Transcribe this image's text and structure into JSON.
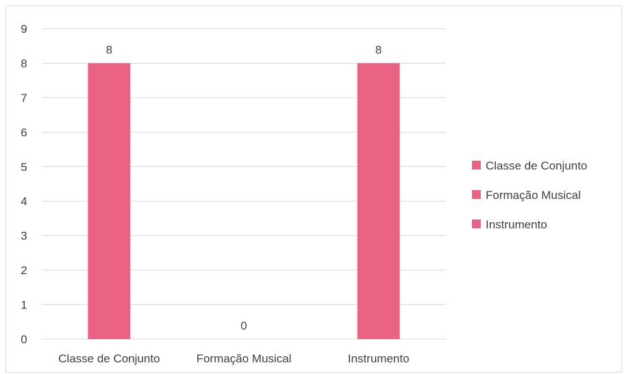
{
  "chart_data": {
    "type": "bar",
    "categories": [
      "Classe de Conjunto",
      "Formação Musical",
      "Instrumento"
    ],
    "values": [
      8,
      0,
      8
    ],
    "ylim": [
      0,
      9
    ],
    "yticks": [
      0,
      1,
      2,
      3,
      4,
      5,
      6,
      7,
      8,
      9
    ],
    "grid": true,
    "legend": {
      "position": "right",
      "entries": [
        "Classe de Conjunto",
        "Formação Musical",
        "Instrumento"
      ]
    },
    "bar_color": "#eb6384",
    "gridline_color": "#d9d9d9",
    "text_color": "#404040"
  }
}
